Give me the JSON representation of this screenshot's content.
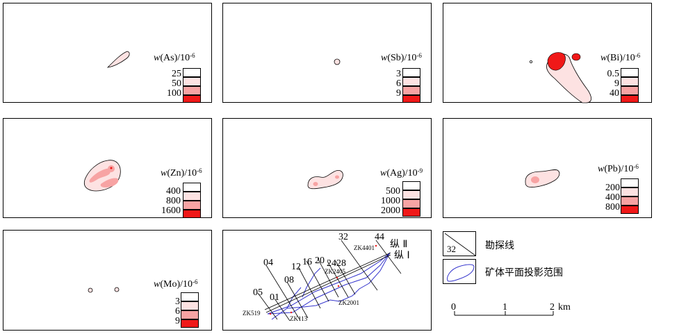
{
  "panels": [
    {
      "id": "as",
      "title_pre": "w",
      "title_el": "(As)",
      "title_unit": "/10",
      "title_exp": "-6",
      "values": [
        "25",
        "50",
        "100"
      ]
    },
    {
      "id": "sb",
      "title_pre": "w",
      "title_el": "(Sb)",
      "title_unit": "/10",
      "title_exp": "-6",
      "values": [
        "3",
        "6",
        "9"
      ]
    },
    {
      "id": "bi",
      "title_pre": "w",
      "title_el": "(Bi)",
      "title_unit": "/10",
      "title_exp": "-6",
      "values": [
        "0.5",
        "9",
        "40"
      ]
    },
    {
      "id": "zn",
      "title_pre": "w",
      "title_el": "(Zn)",
      "title_unit": "/10",
      "title_exp": "-6",
      "values": [
        "400",
        "800",
        "1600"
      ]
    },
    {
      "id": "ag",
      "title_pre": "w",
      "title_el": "(Ag)",
      "title_unit": "/10",
      "title_exp": "-9",
      "values": [
        "500",
        "1000",
        "2000"
      ]
    },
    {
      "id": "pb",
      "title_pre": "w",
      "title_el": "(Pb)",
      "title_unit": "/10",
      "title_exp": "-6",
      "values": [
        "200",
        "400",
        "800"
      ]
    },
    {
      "id": "mo",
      "title_pre": "w",
      "title_el": "(Mo)",
      "title_unit": "/10",
      "title_exp": "-6",
      "values": [
        "3",
        "6",
        "9"
      ]
    }
  ],
  "colors": {
    "low": "#fde2e2",
    "mid": "#f7a3a3",
    "high": "#f01818",
    "line": "#3333cc",
    "outline": "#000000"
  },
  "location_map": {
    "line_labels": [
      "04",
      "05",
      "01",
      "08",
      "12",
      "16",
      "20",
      "24",
      "28",
      "32",
      "44"
    ],
    "drill_labels": [
      "ZK4401",
      "ZK2405",
      "ZK2001",
      "ZK519",
      "ZK113"
    ],
    "vein_labels": [
      "纵 Ⅱ",
      "纵 Ⅰ"
    ]
  },
  "legend": {
    "line_symbol_number": "32",
    "line_text": "勘探线",
    "orebody_text": "矿体平面投影范围",
    "scale_ticks": [
      "0",
      "1",
      "2"
    ],
    "scale_unit": "km"
  }
}
